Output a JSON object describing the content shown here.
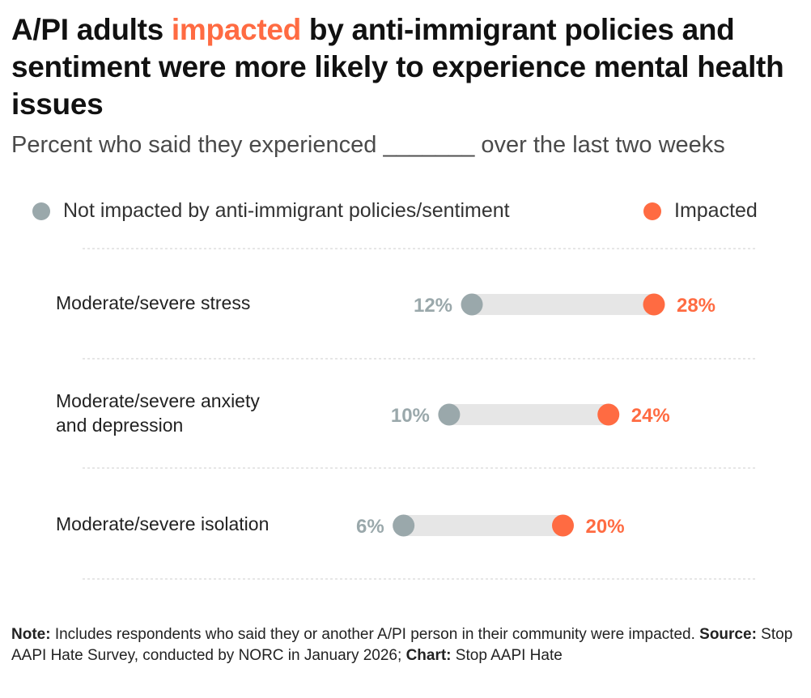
{
  "title": {
    "before": "A/PI adults ",
    "highlight": "impacted",
    "after": " by anti-immigrant policies and sentiment were more likely to experience mental health issues"
  },
  "subtitle": "Percent who said they experienced _______ over the last two weeks",
  "colors": {
    "not_impacted": "#9aa8ab",
    "impacted": "#ff6b42",
    "bar": "#e6e6e6",
    "gridline": "#dddddd"
  },
  "chart_data": {
    "type": "dumbbell",
    "title": "A/PI adults impacted by anti-immigrant policies and sentiment were more likely to experience mental health issues",
    "subtitle": "Percent who said they experienced _______ over the last two weeks",
    "legend": [
      {
        "name": "Not impacted by anti-immigrant policies/sentiment",
        "position": "top-left"
      },
      {
        "name": "Impacted",
        "position": "top-right"
      }
    ],
    "categories": [
      [
        "Moderate/severe stress"
      ],
      [
        "Moderate/severe anxiety",
        "and depression"
      ],
      [
        "Moderate/severe isolation"
      ]
    ],
    "series": [
      {
        "name": "Not impacted by anti-immigrant policies/sentiment",
        "values": [
          12,
          10,
          6
        ],
        "labels": [
          "12%",
          "10%",
          "6%"
        ]
      },
      {
        "name": "Impacted",
        "values": [
          28,
          24,
          20
        ],
        "labels": [
          "28%",
          "24%",
          "20%"
        ]
      }
    ],
    "xlim": [
      0,
      37
    ],
    "unit": "%",
    "grid": true
  },
  "footer": {
    "note_label": "Note:",
    "note_text": " Includes respondents who said they or another A/PI person in their community were impacted. ",
    "source_label": "Source:",
    "source_text": " Stop AAPI Hate Survey, conducted by NORC in January 2026; ",
    "chart_label": "Chart:",
    "chart_text": " Stop AAPI Hate"
  }
}
